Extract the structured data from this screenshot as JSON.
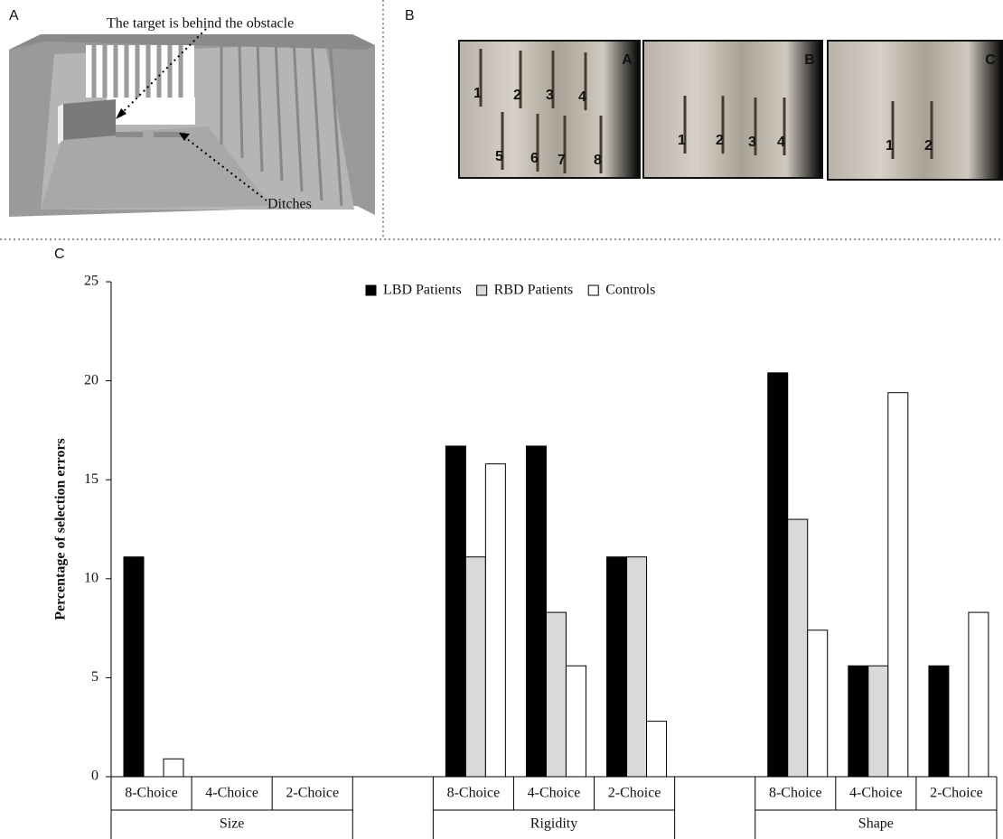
{
  "panel_labels": [
    "A",
    "B",
    "C"
  ],
  "panel_a": {
    "annotations": [
      "The target is behind the obstacle",
      "Ditches"
    ]
  },
  "panel_b": {
    "photos": [
      {
        "label": "A",
        "numbers": [
          "1",
          "2",
          "3",
          "4",
          "5",
          "6",
          "7",
          "8"
        ]
      },
      {
        "label": "B",
        "numbers": [
          "1",
          "2",
          "3",
          "4"
        ]
      },
      {
        "label": "C",
        "numbers": [
          "1",
          "2"
        ]
      }
    ]
  },
  "chart_data": {
    "type": "bar",
    "y_label": "Percentage of selection errors",
    "categories": [
      "8-Choice",
      "4-Choice",
      "2-Choice",
      null,
      "8-Choice",
      "4-Choice",
      "2-Choice",
      null,
      "8-Choice",
      "4-Choice",
      "2-Choice"
    ],
    "groups": [
      "Size",
      "Rigidity",
      "Shape"
    ],
    "series": [
      {
        "name": "LBD Patients",
        "color": "#000000",
        "values": [
          11.1,
          0,
          0,
          null,
          16.7,
          16.7,
          11.1,
          null,
          20.4,
          5.6,
          5.6
        ]
      },
      {
        "name": "RBD Patients",
        "color": "#d9d9d9",
        "values": [
          0,
          0,
          0,
          null,
          11.1,
          8.3,
          11.1,
          null,
          13.0,
          5.6,
          0
        ]
      },
      {
        "name": "Controls",
        "color": "#ffffff",
        "values": [
          0.9,
          0,
          0,
          null,
          15.8,
          5.6,
          2.8,
          null,
          7.4,
          19.4,
          8.3
        ]
      }
    ],
    "ylim": [
      0,
      25
    ],
    "yticks": [
      0,
      5,
      10,
      15,
      20,
      25
    ],
    "legend": "top"
  }
}
